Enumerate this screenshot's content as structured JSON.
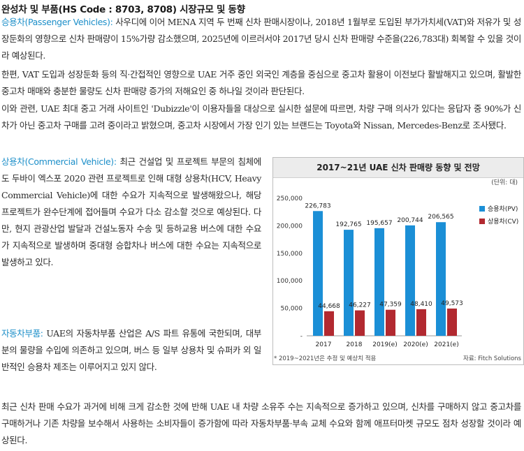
{
  "heading": "완성차 및 부품(HS Code : 8703, 8708) 시장규모 및 동향",
  "para1": {
    "label": "승용차(Passenger Vehicles):",
    "text": " 사우디에 이어 MENA 지역 두 번째 신차 판매시장이나, 2018년 1월부로 도입된 부가가치세(VAT)와 저유가 및 성장둔화의 영향으로 신차 판매량이 15%가량 감소했으며, 2025년에 이르러서야 2017년 당시 신차 판매량 수준을(226,783대) 회복할 수 있을 것이라 예상된다."
  },
  "para2": "한편, VAT 도입과 성장둔화 등의 직·간접적인 영향으로 UAE 거주 중인 외국인 계층을 중심으로 중고차 활용이 이전보다 활발해지고 있으며, 활발한 중고차 매매와 충분한 물량도 신차 판매량 증가의 저해요인 중 하나일 것이라 판단된다.",
  "para3": "이와 관련, UAE 최대 중고 거래 사이트인 'Dubizzle'이 이용자들을 대상으로 실시한 설문에 따르면, 차량 구매 의사가 있다는 응답자 중 90%가 신차가 아닌 중고차 구매를 고려 중이라고 밝혔으며, 중고차 시장에서 가장 인기 있는 브랜드는 Toyota와 Nissan, Mercedes-Benz로 조사됐다.",
  "para4": {
    "label": "상용차(Commercial Vehicle):",
    "text": " 최근 건설업 및 프로젝트 부문의 침체에도 두바이 엑스포 2020 관련 프로젝트로 인해 대형 상용차(HCV, Heavy Commercial Vehicle)에 대한 수요가 지속적으로 발생해왔으나, 해당 프로젝트가 완수단계에 접어들며 수요가 다소 감소할 것으로 예상된다. 다만, 현지 관광산업 발달과 건설노동자 수송 및 등하교용 버스에 대한 수요가 지속적으로 발생하며 중대형 승합차나 버스에 대한 수요는 지속적으로 발생하고 있다."
  },
  "para5": {
    "label": "자동차부품:",
    "text": " UAE의 자동차부품 산업은 A/S 파트 유통에 국한되며, 대부분의 물량을 수입에 의존하고 있으며, 버스 등 일부 상용차 및 슈퍼카 외 일반적인 승용차 제조는 이루어지고 있지 않다."
  },
  "para6": "최근 신차 판매 수요가 과거에 비해 크게 감소한 것에 반해 UAE 내 차량 소유주 수는 지속적으로 증가하고 있으며, 신차를 구매하지 않고 중고차를 구매하거나 기존 차량을 보수해서 사용하는 소비자들이 증가함에 따라 자동차부품·부속 교체 수요와 함께 애프터마켓 규모도 점차 성장할 것이라 예상된다.",
  "chart_data": {
    "type": "bar",
    "title": "2017~21년 UAE 신차 판매량 동향 및 전망",
    "unit": "(단위: 대)",
    "categories": [
      "2017",
      "2018",
      "2019(e)",
      "2020(e)",
      "2021(e)"
    ],
    "series": [
      {
        "name": "승용차(PV)",
        "color": "#1b8fd6",
        "values": [
          226783,
          192765,
          195657,
          200744,
          206565
        ]
      },
      {
        "name": "상용차(CV)",
        "color": "#b22930",
        "values": [
          44668,
          46227,
          47359,
          48410,
          49573
        ]
      }
    ],
    "ylim": [
      0,
      250000
    ],
    "yticks": [
      "-",
      "50,000",
      "100,000",
      "150,000",
      "200,000",
      "250,000"
    ],
    "legend": "right",
    "footnote": "* 2019~2021년은 추정 및 예상치 적용",
    "source": "자료: Fitch Solutions"
  }
}
